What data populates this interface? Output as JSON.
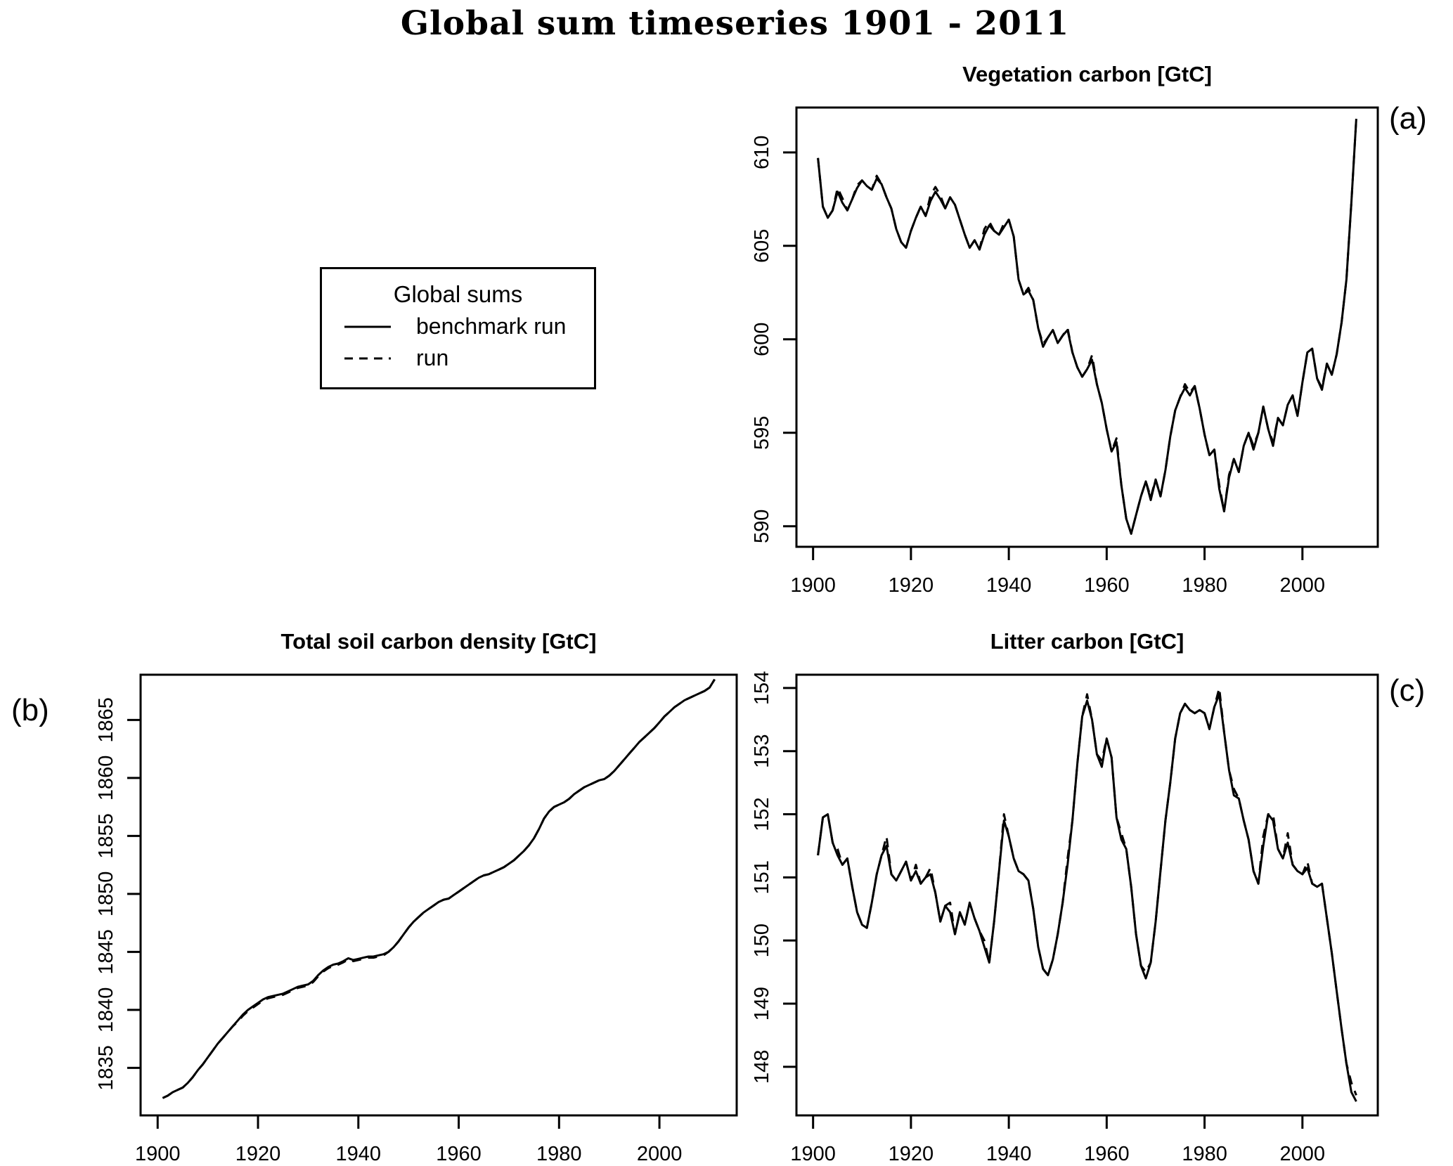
{
  "title": "Global sum timeseries 1901 - 2011",
  "background_color": "#ffffff",
  "line_color": "#000000",
  "legend": {
    "title": "Global sums",
    "items": [
      {
        "label": "benchmark run",
        "line_style": "solid"
      },
      {
        "label": "run",
        "line_style": "dashed"
      }
    ]
  },
  "chart_data": [
    {
      "id": "a",
      "panel_label": "(a)",
      "type": "line",
      "title": "Vegetation carbon [GtC]",
      "xlabel": "",
      "ylabel": "",
      "x_start": 1901,
      "x_step": 1,
      "xlim": [
        1896.6,
        2015.4
      ],
      "ylim": [
        588.9,
        612.4
      ],
      "xticks": [
        1900,
        1920,
        1940,
        1960,
        1980,
        2000
      ],
      "yticks": [
        590,
        595,
        600,
        605,
        610
      ],
      "grid": false,
      "series": [
        {
          "name": "benchmark run",
          "style": "solid",
          "values": [
            609.7,
            607.1,
            606.5,
            606.9,
            607.9,
            607.3,
            606.9,
            607.5,
            608.1,
            608.5,
            608.2,
            608.0,
            608.6,
            608.3,
            607.6,
            607.0,
            605.9,
            605.2,
            604.9,
            605.8,
            606.5,
            607.1,
            606.6,
            607.4,
            607.9,
            607.5,
            607.0,
            607.6,
            607.2,
            606.4,
            605.6,
            604.9,
            605.3,
            604.8,
            605.6,
            606.1,
            605.8,
            605.6,
            606.0,
            606.4,
            605.5,
            603.2,
            602.4,
            602.6,
            602.1,
            600.6,
            599.6,
            600.1,
            600.5,
            599.8,
            600.2,
            600.5,
            599.3,
            598.5,
            598.0,
            598.4,
            598.9,
            597.6,
            596.6,
            595.2,
            594.0,
            594.5,
            592.2,
            590.4,
            589.6,
            590.6,
            591.6,
            592.4,
            591.4,
            592.5,
            591.6,
            593.0,
            594.8,
            596.2,
            596.9,
            597.4,
            597.0,
            597.5,
            596.3,
            594.9,
            593.8,
            594.1,
            592.0,
            590.8,
            592.6,
            593.6,
            592.9,
            594.3,
            595.0,
            594.1,
            595.0,
            596.4,
            595.2,
            594.3,
            595.8,
            595.4,
            596.5,
            597.0,
            595.9,
            597.7,
            599.3,
            599.5,
            597.9,
            597.3,
            598.7,
            598.1,
            599.2,
            600.9,
            603.2,
            607.3,
            611.8
          ]
        },
        {
          "name": "run",
          "style": "dashed",
          "values": [
            609.7,
            607.1,
            606.5,
            606.9,
            608.1,
            607.55,
            606.9,
            607.5,
            608.25,
            608.5,
            608.2,
            608.0,
            608.75,
            608.3,
            607.6,
            607.0,
            605.9,
            605.2,
            604.9,
            605.8,
            606.5,
            607.1,
            606.6,
            607.7,
            608.15,
            607.7,
            607.0,
            607.6,
            607.2,
            606.4,
            605.6,
            604.9,
            605.3,
            604.8,
            605.9,
            606.3,
            605.8,
            605.6,
            606.2,
            606.4,
            605.5,
            603.2,
            602.4,
            602.75,
            602.1,
            600.6,
            599.75,
            600.1,
            600.5,
            599.8,
            600.2,
            600.6,
            599.3,
            598.5,
            598.0,
            598.4,
            599.15,
            597.6,
            596.6,
            595.2,
            594.0,
            594.7,
            592.2,
            590.4,
            589.6,
            590.6,
            591.6,
            592.4,
            591.55,
            592.5,
            591.6,
            593.0,
            594.8,
            596.2,
            596.9,
            597.6,
            597.15,
            597.5,
            596.3,
            594.9,
            593.8,
            594.1,
            592.2,
            590.8,
            592.75,
            593.6,
            592.9,
            594.3,
            595.0,
            594.3,
            595.0,
            596.4,
            595.2,
            594.5,
            595.8,
            595.4,
            596.5,
            597.0,
            595.9,
            597.7,
            599.3,
            599.5,
            597.9,
            597.4,
            598.7,
            598.1,
            599.2,
            600.9,
            603.2,
            607.3,
            611.8
          ]
        }
      ]
    },
    {
      "id": "b",
      "panel_label": "(b)",
      "type": "line",
      "title": "Total soil carbon density [GtC]",
      "xlabel": "",
      "ylabel": "",
      "x_start": 1901,
      "x_step": 1,
      "xlim": [
        1896.6,
        2015.4
      ],
      "ylim": [
        1830.9,
        1868.9
      ],
      "xticks": [
        1900,
        1920,
        1940,
        1960,
        1980,
        2000
      ],
      "yticks": [
        1835,
        1840,
        1845,
        1850,
        1855,
        1860,
        1865
      ],
      "grid": false,
      "series": [
        {
          "name": "benchmark run",
          "style": "solid",
          "values": [
            1832.4,
            1832.6,
            1832.9,
            1833.1,
            1833.3,
            1833.7,
            1834.2,
            1834.8,
            1835.3,
            1835.9,
            1836.5,
            1837.1,
            1837.6,
            1838.1,
            1838.6,
            1839.1,
            1839.6,
            1840.0,
            1840.3,
            1840.6,
            1840.9,
            1841.1,
            1841.2,
            1841.3,
            1841.4,
            1841.6,
            1841.8,
            1842.0,
            1842.1,
            1842.2,
            1842.5,
            1843.0,
            1843.4,
            1843.7,
            1843.9,
            1844.0,
            1844.2,
            1844.45,
            1844.3,
            1844.4,
            1844.5,
            1844.6,
            1844.6,
            1844.7,
            1844.8,
            1845.0,
            1845.4,
            1845.9,
            1846.5,
            1847.1,
            1847.6,
            1848.0,
            1848.4,
            1848.7,
            1849.0,
            1849.3,
            1849.5,
            1849.6,
            1849.9,
            1850.2,
            1850.5,
            1850.8,
            1851.1,
            1851.4,
            1851.6,
            1851.7,
            1851.9,
            1852.1,
            1852.3,
            1852.6,
            1852.9,
            1853.3,
            1853.7,
            1854.2,
            1854.8,
            1855.6,
            1856.5,
            1857.1,
            1857.5,
            1857.7,
            1857.9,
            1858.2,
            1858.6,
            1858.9,
            1859.2,
            1859.4,
            1859.6,
            1859.8,
            1859.9,
            1860.2,
            1860.6,
            1861.1,
            1861.6,
            1862.1,
            1862.6,
            1863.1,
            1863.5,
            1863.9,
            1864.3,
            1864.8,
            1865.3,
            1865.7,
            1866.1,
            1866.4,
            1866.7,
            1866.9,
            1867.1,
            1867.3,
            1867.5,
            1867.8,
            1868.5
          ]
        },
        {
          "name": "run",
          "style": "dashed",
          "values": [
            1832.4,
            1832.6,
            1832.9,
            1833.1,
            1833.3,
            1833.7,
            1834.2,
            1834.8,
            1835.3,
            1835.9,
            1836.5,
            1837.1,
            1837.6,
            1838.1,
            1838.6,
            1839.0,
            1839.5,
            1839.9,
            1840.2,
            1840.5,
            1840.8,
            1841.0,
            1841.1,
            1841.2,
            1841.3,
            1841.5,
            1841.7,
            1841.9,
            1842.0,
            1842.1,
            1842.4,
            1842.9,
            1843.3,
            1843.6,
            1843.8,
            1843.9,
            1844.1,
            1844.35,
            1844.2,
            1844.3,
            1844.4,
            1844.5,
            1844.5,
            1844.6,
            1844.7,
            1845.0,
            1845.4,
            1845.9,
            1846.5,
            1847.1,
            1847.6,
            1848.0,
            1848.4,
            1848.7,
            1849.0,
            1849.3,
            1849.5,
            1849.6,
            1849.9,
            1850.2,
            1850.5,
            1850.8,
            1851.1,
            1851.4,
            1851.6,
            1851.7,
            1851.9,
            1852.1,
            1852.3,
            1852.6,
            1852.9,
            1853.3,
            1853.7,
            1854.2,
            1854.8,
            1855.6,
            1856.5,
            1857.1,
            1857.5,
            1857.7,
            1857.9,
            1858.2,
            1858.6,
            1858.9,
            1859.2,
            1859.4,
            1859.6,
            1859.8,
            1859.9,
            1860.2,
            1860.6,
            1861.1,
            1861.6,
            1862.1,
            1862.6,
            1863.1,
            1863.5,
            1863.9,
            1864.3,
            1864.8,
            1865.3,
            1865.7,
            1866.1,
            1866.4,
            1866.7,
            1866.9,
            1867.1,
            1867.3,
            1867.5,
            1867.8,
            1868.5
          ]
        }
      ]
    },
    {
      "id": "c",
      "panel_label": "(c)",
      "type": "line",
      "title": "Litter carbon [GtC]",
      "xlabel": "",
      "ylabel": "",
      "x_start": 1901,
      "x_step": 1,
      "xlim": [
        1896.6,
        2015.4
      ],
      "ylim": [
        147.23,
        154.21
      ],
      "xticks": [
        1900,
        1920,
        1940,
        1960,
        1980,
        2000
      ],
      "yticks": [
        148,
        149,
        150,
        151,
        152,
        153,
        154
      ],
      "grid": false,
      "series": [
        {
          "name": "benchmark run",
          "style": "solid",
          "values": [
            151.35,
            151.95,
            152.0,
            151.55,
            151.35,
            151.2,
            151.3,
            150.85,
            150.45,
            150.25,
            150.2,
            150.6,
            151.05,
            151.35,
            151.5,
            151.05,
            150.95,
            151.1,
            151.25,
            150.95,
            151.1,
            150.9,
            151.0,
            151.05,
            150.75,
            150.3,
            150.55,
            150.45,
            150.1,
            150.45,
            150.25,
            150.6,
            150.35,
            150.15,
            149.9,
            149.65,
            150.3,
            151.1,
            151.9,
            151.65,
            151.3,
            151.1,
            151.05,
            150.95,
            150.5,
            149.9,
            149.55,
            149.45,
            149.7,
            150.1,
            150.6,
            151.2,
            151.9,
            152.8,
            153.55,
            153.8,
            153.5,
            152.95,
            152.75,
            153.2,
            152.9,
            151.95,
            151.6,
            151.45,
            150.85,
            150.1,
            149.6,
            149.4,
            149.65,
            150.3,
            151.1,
            151.9,
            152.5,
            153.2,
            153.6,
            153.75,
            153.65,
            153.6,
            153.65,
            153.6,
            153.35,
            153.7,
            153.9,
            153.3,
            152.7,
            152.3,
            152.25,
            151.9,
            151.6,
            151.1,
            150.9,
            151.5,
            152.0,
            151.9,
            151.45,
            151.3,
            151.55,
            151.2,
            151.1,
            151.05,
            151.15,
            150.9,
            150.85,
            150.9,
            150.35,
            149.8,
            149.2,
            148.6,
            148.05,
            147.6,
            147.45
          ]
        },
        {
          "name": "run",
          "style": "dashed",
          "values": [
            151.35,
            151.95,
            152.0,
            151.55,
            151.45,
            151.2,
            151.3,
            150.85,
            150.45,
            150.25,
            150.2,
            150.6,
            151.05,
            151.35,
            151.65,
            151.05,
            150.95,
            151.1,
            151.25,
            150.95,
            151.2,
            150.9,
            151.0,
            151.15,
            150.75,
            150.3,
            150.55,
            150.6,
            150.1,
            150.45,
            150.25,
            150.6,
            150.35,
            150.15,
            150.0,
            149.65,
            150.3,
            151.1,
            152.0,
            151.65,
            151.3,
            151.1,
            151.05,
            150.95,
            150.5,
            149.9,
            149.55,
            149.45,
            149.7,
            150.1,
            150.6,
            151.3,
            151.9,
            152.8,
            153.55,
            153.9,
            153.5,
            152.95,
            152.85,
            153.2,
            152.9,
            151.95,
            151.7,
            151.45,
            150.85,
            150.1,
            149.6,
            149.5,
            149.65,
            150.3,
            151.1,
            151.9,
            152.5,
            153.2,
            153.6,
            153.75,
            153.65,
            153.6,
            153.65,
            153.6,
            153.35,
            153.7,
            154.0,
            153.3,
            152.7,
            152.4,
            152.25,
            151.9,
            151.6,
            151.1,
            150.9,
            151.65,
            152.0,
            152.0,
            151.45,
            151.3,
            151.7,
            151.2,
            151.1,
            151.05,
            151.25,
            150.9,
            150.85,
            150.9,
            150.35,
            149.8,
            149.2,
            148.6,
            148.05,
            147.75,
            147.55
          ]
        }
      ]
    }
  ]
}
